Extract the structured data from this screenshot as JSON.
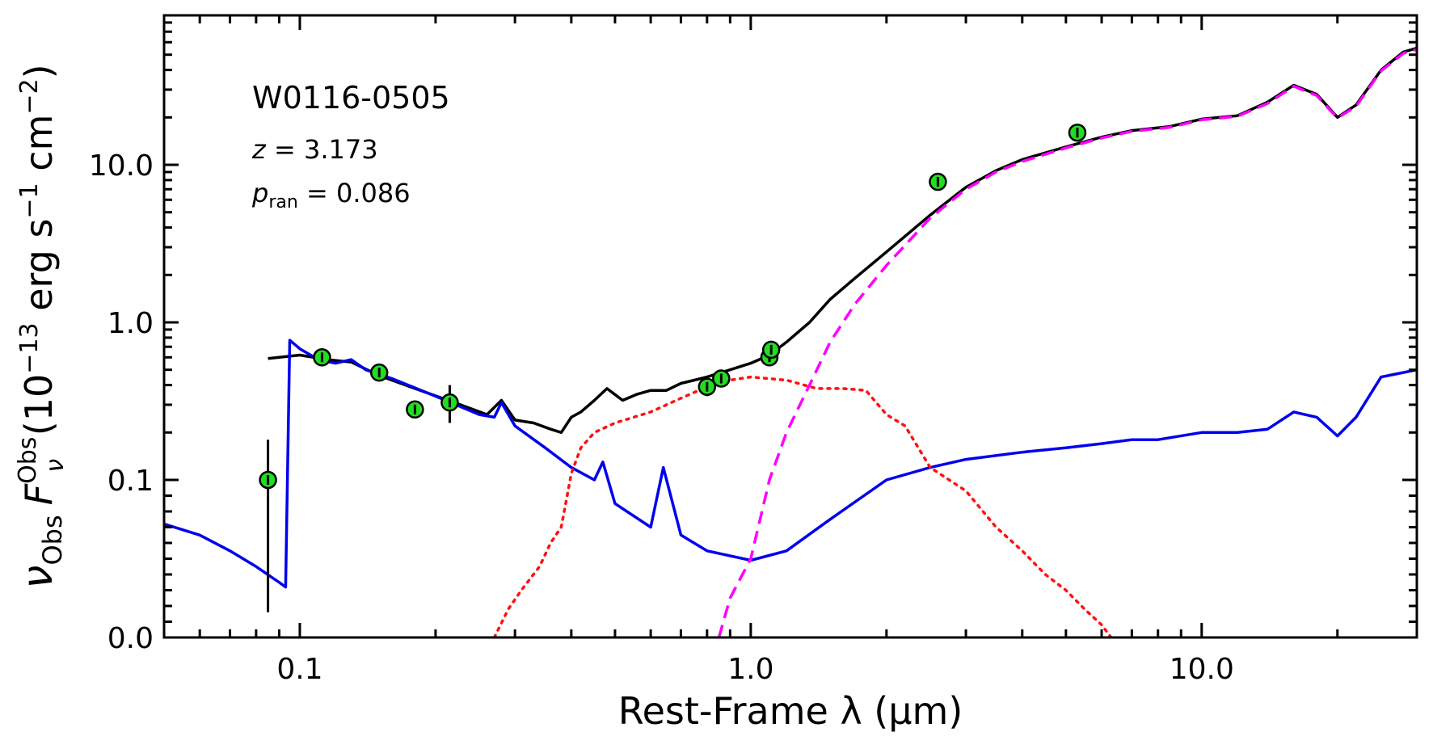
{
  "chart_data": {
    "type": "line",
    "title": "",
    "xlabel": "Rest-Frame λ (μm)",
    "ylabel": "ν_Obs F_ν^Obs (10^−13 erg s^−1 cm^−2)",
    "ylabel_parts": {
      "nu": "ν",
      "nu_sub": "Obs",
      "F": "F",
      "F_sub": "ν",
      "F_sup": "Obs",
      "open": " (10",
      "exp1": "−13",
      "erg": " erg s",
      "exp2": "−1",
      "cm": " cm",
      "exp3": "−2",
      "close": ")"
    },
    "x_scale": "log",
    "y_scale": "symlog",
    "xlim": [
      0.05,
      30
    ],
    "ylim": [
      0,
      100
    ],
    "x_tick_labels": [
      {
        "value": 0.1,
        "label": "0.1"
      },
      {
        "value": 1.0,
        "label": "1.0"
      },
      {
        "value": 10.0,
        "label": "10.0"
      }
    ],
    "y_tick_labels": [
      {
        "value": 0,
        "label": "0.0"
      },
      {
        "value": 0.1,
        "label": "0.1"
      },
      {
        "value": 1.0,
        "label": "1.0"
      },
      {
        "value": 10.0,
        "label": "10.0"
      }
    ],
    "annotations": {
      "object": "W0116-0505",
      "z_var": "z",
      "z_eq": " = 3.173",
      "p_var": "p",
      "p_sub": "ran",
      "p_eq": " = 0.086"
    },
    "series": [
      {
        "role": "total",
        "color": "#000000",
        "dash": "solid",
        "points": [
          [
            0.085,
            0.59
          ],
          [
            0.1,
            0.62
          ],
          [
            0.115,
            0.58
          ],
          [
            0.13,
            0.56
          ],
          [
            0.15,
            0.46
          ],
          [
            0.18,
            0.38
          ],
          [
            0.22,
            0.31
          ],
          [
            0.26,
            0.26
          ],
          [
            0.28,
            0.32
          ],
          [
            0.3,
            0.24
          ],
          [
            0.33,
            0.23
          ],
          [
            0.36,
            0.21
          ],
          [
            0.38,
            0.2
          ],
          [
            0.4,
            0.25
          ],
          [
            0.42,
            0.27
          ],
          [
            0.45,
            0.32
          ],
          [
            0.48,
            0.38
          ],
          [
            0.52,
            0.32
          ],
          [
            0.56,
            0.35
          ],
          [
            0.6,
            0.37
          ],
          [
            0.65,
            0.37
          ],
          [
            0.7,
            0.41
          ],
          [
            0.75,
            0.43
          ],
          [
            0.8,
            0.45
          ],
          [
            0.9,
            0.5
          ],
          [
            1.0,
            0.55
          ],
          [
            1.1,
            0.62
          ],
          [
            1.2,
            0.75
          ],
          [
            1.35,
            1.0
          ],
          [
            1.5,
            1.4
          ],
          [
            1.7,
            1.9
          ],
          [
            2.0,
            2.8
          ],
          [
            2.5,
            4.8
          ],
          [
            3.0,
            7.2
          ],
          [
            3.5,
            9.2
          ],
          [
            4.0,
            10.8
          ],
          [
            5.0,
            13.0
          ],
          [
            6.0,
            15.0
          ],
          [
            7.0,
            16.5
          ],
          [
            8.5,
            17.5
          ],
          [
            10.0,
            19.5
          ],
          [
            12.0,
            20.5
          ],
          [
            14.0,
            25.0
          ],
          [
            16.0,
            32.0
          ],
          [
            18.0,
            28.0
          ],
          [
            20.0,
            20.0
          ],
          [
            22.0,
            24.0
          ],
          [
            25.0,
            40.0
          ],
          [
            28.0,
            52.0
          ],
          [
            30.0,
            55.0
          ]
        ]
      },
      {
        "role": "stellar-blue",
        "color": "#0000ee",
        "dash": "solid",
        "points": [
          [
            0.05,
            0.072
          ],
          [
            0.06,
            0.065
          ],
          [
            0.07,
            0.055
          ],
          [
            0.08,
            0.045
          ],
          [
            0.09,
            0.035
          ],
          [
            0.093,
            0.032
          ],
          [
            0.095,
            0.77
          ],
          [
            0.1,
            0.68
          ],
          [
            0.11,
            0.58
          ],
          [
            0.12,
            0.55
          ],
          [
            0.13,
            0.58
          ],
          [
            0.14,
            0.5
          ],
          [
            0.16,
            0.44
          ],
          [
            0.2,
            0.34
          ],
          [
            0.25,
            0.26
          ],
          [
            0.27,
            0.25
          ],
          [
            0.28,
            0.31
          ],
          [
            0.3,
            0.22
          ],
          [
            0.35,
            0.16
          ],
          [
            0.4,
            0.12
          ],
          [
            0.45,
            0.1
          ],
          [
            0.47,
            0.13
          ],
          [
            0.5,
            0.085
          ],
          [
            0.6,
            0.07
          ],
          [
            0.64,
            0.12
          ],
          [
            0.7,
            0.065
          ],
          [
            0.8,
            0.055
          ],
          [
            1.0,
            0.049
          ],
          [
            1.2,
            0.055
          ],
          [
            1.5,
            0.075
          ],
          [
            2.0,
            0.1
          ],
          [
            2.5,
            0.12
          ],
          [
            3.0,
            0.135
          ],
          [
            4.0,
            0.15
          ],
          [
            5.0,
            0.16
          ],
          [
            6.0,
            0.17
          ],
          [
            7.0,
            0.18
          ],
          [
            8.0,
            0.18
          ],
          [
            10.0,
            0.2
          ],
          [
            12.0,
            0.2
          ],
          [
            14.0,
            0.21
          ],
          [
            16.0,
            0.27
          ],
          [
            18.0,
            0.25
          ],
          [
            20.0,
            0.19
          ],
          [
            22.0,
            0.25
          ],
          [
            25.0,
            0.45
          ],
          [
            30.0,
            0.5
          ]
        ]
      },
      {
        "role": "dotted-red",
        "color": "#ff1111",
        "dash": "dotted",
        "points": [
          [
            0.27,
            0.0
          ],
          [
            0.29,
            0.018
          ],
          [
            0.31,
            0.03
          ],
          [
            0.34,
            0.045
          ],
          [
            0.36,
            0.06
          ],
          [
            0.38,
            0.07
          ],
          [
            0.4,
            0.11
          ],
          [
            0.42,
            0.16
          ],
          [
            0.45,
            0.2
          ],
          [
            0.5,
            0.23
          ],
          [
            0.6,
            0.27
          ],
          [
            0.7,
            0.33
          ],
          [
            0.8,
            0.39
          ],
          [
            0.9,
            0.43
          ],
          [
            1.0,
            0.45
          ],
          [
            1.2,
            0.43
          ],
          [
            1.4,
            0.38
          ],
          [
            1.6,
            0.38
          ],
          [
            1.8,
            0.37
          ],
          [
            2.0,
            0.26
          ],
          [
            2.2,
            0.22
          ],
          [
            2.5,
            0.12
          ],
          [
            3.0,
            0.093
          ],
          [
            3.5,
            0.07
          ],
          [
            4.0,
            0.055
          ],
          [
            4.5,
            0.04
          ],
          [
            5.0,
            0.03
          ],
          [
            5.5,
            0.018
          ],
          [
            6.0,
            0.008
          ],
          [
            6.3,
            0.0
          ]
        ]
      },
      {
        "role": "dashed-magenta",
        "color": "#ff00ff",
        "dash": "dashed",
        "points": [
          [
            0.85,
            0.0
          ],
          [
            0.9,
            0.025
          ],
          [
            1.0,
            0.05
          ],
          [
            1.1,
            0.1
          ],
          [
            1.2,
            0.2
          ],
          [
            1.35,
            0.4
          ],
          [
            1.5,
            0.75
          ],
          [
            1.7,
            1.3
          ],
          [
            2.0,
            2.3
          ],
          [
            2.5,
            4.6
          ],
          [
            3.0,
            7.0
          ],
          [
            3.5,
            9.0
          ],
          [
            4.0,
            10.5
          ],
          [
            5.0,
            12.8
          ],
          [
            6.0,
            14.8
          ],
          [
            7.0,
            16.3
          ],
          [
            8.5,
            17.3
          ],
          [
            10.0,
            19.3
          ],
          [
            12.0,
            20.3
          ],
          [
            14.0,
            24.5
          ],
          [
            16.0,
            31.5
          ],
          [
            18.0,
            27.5
          ],
          [
            20.0,
            19.8
          ],
          [
            22.0,
            23.5
          ],
          [
            25.0,
            39.5
          ],
          [
            28.0,
            51.0
          ],
          [
            30.0,
            54.0
          ]
        ]
      }
    ],
    "observations": {
      "marker_color": "#22dd22",
      "points": [
        {
          "x": 0.085,
          "y": 0.1,
          "yerr": [
            0.016,
            0.18
          ]
        },
        {
          "x": 0.112,
          "y": 0.6
        },
        {
          "x": 0.15,
          "y": 0.48
        },
        {
          "x": 0.18,
          "y": 0.28
        },
        {
          "x": 0.215,
          "y": 0.31,
          "yerr": [
            0.23,
            0.4
          ]
        },
        {
          "x": 0.8,
          "y": 0.39,
          "yerr": [
            0.34,
            0.44
          ]
        },
        {
          "x": 0.86,
          "y": 0.44
        },
        {
          "x": 1.1,
          "y": 0.6
        },
        {
          "x": 1.11,
          "y": 0.67
        },
        {
          "x": 2.6,
          "y": 7.8
        },
        {
          "x": 5.3,
          "y": 16.0
        }
      ]
    }
  }
}
